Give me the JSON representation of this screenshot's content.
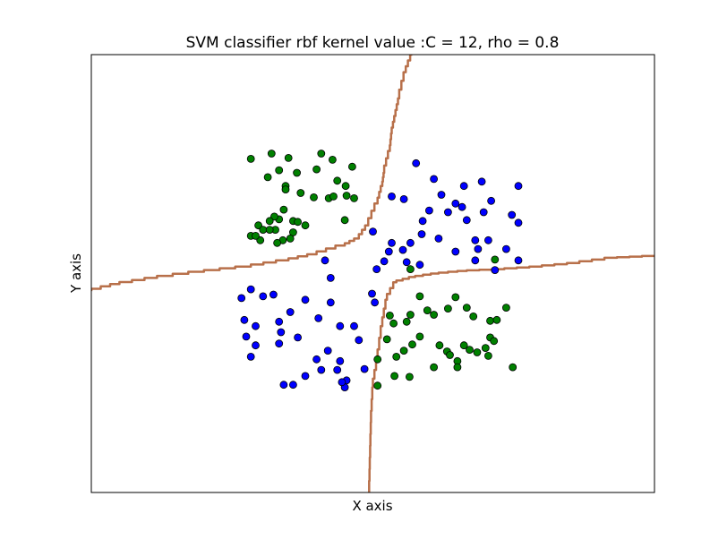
{
  "chart_data": {
    "type": "scatter",
    "title": "SVM classifier rbf kernel value :C = 12, rho = 0.8",
    "xlabel": "X axis",
    "ylabel": "Y axis",
    "xlim": [
      -3.0,
      3.0
    ],
    "ylim": [
      -2.5,
      2.5
    ],
    "ticks_visible": false,
    "grid": false,
    "legend": "none",
    "series": [
      {
        "color": "#0000ff",
        "points": [
          [
            0.46,
            1.26
          ],
          [
            0.65,
            1.08
          ],
          [
            0.97,
            1.0
          ],
          [
            1.16,
            1.05
          ],
          [
            1.55,
            1.0
          ],
          [
            0.73,
            0.9
          ],
          [
            0.88,
            0.8
          ],
          [
            0.95,
            0.76
          ],
          [
            1.26,
            0.83
          ],
          [
            0.53,
            0.6
          ],
          [
            0.6,
            0.72
          ],
          [
            0.8,
            0.7
          ],
          [
            1.0,
            0.61
          ],
          [
            1.18,
            0.7
          ],
          [
            1.48,
            0.67
          ],
          [
            1.55,
            0.58
          ],
          [
            0.2,
            0.88
          ],
          [
            0.33,
            0.85
          ],
          [
            0.0,
            0.48
          ],
          [
            0.2,
            0.35
          ],
          [
            0.4,
            0.35
          ],
          [
            0.52,
            0.45
          ],
          [
            0.7,
            0.4
          ],
          [
            0.88,
            0.25
          ],
          [
            1.09,
            0.38
          ],
          [
            1.12,
            0.28
          ],
          [
            1.23,
            0.38
          ],
          [
            1.42,
            0.28
          ],
          [
            1.55,
            0.15
          ],
          [
            1.09,
            0.15
          ],
          [
            1.3,
            0.04
          ],
          [
            0.32,
            0.27
          ],
          [
            0.36,
            0.13
          ],
          [
            0.5,
            0.1
          ],
          [
            0.12,
            0.14
          ],
          [
            0.17,
            0.25
          ],
          [
            0.04,
            0.05
          ],
          [
            -0.01,
            -0.23
          ],
          [
            -0.51,
            0.15
          ],
          [
            -0.45,
            -0.05
          ],
          [
            -1.3,
            -0.18
          ],
          [
            -1.4,
            -0.28
          ],
          [
            -1.17,
            -0.26
          ],
          [
            -1.06,
            -0.24
          ],
          [
            -0.88,
            -0.44
          ],
          [
            -0.72,
            -0.3
          ],
          [
            -0.45,
            -0.33
          ],
          [
            -1.37,
            -0.53
          ],
          [
            -1.25,
            -0.6
          ],
          [
            -1.35,
            -0.72
          ],
          [
            -1.0,
            -0.55
          ],
          [
            -0.98,
            -0.67
          ],
          [
            -0.8,
            -0.73
          ],
          [
            -0.58,
            -0.51
          ],
          [
            -0.35,
            -0.6
          ],
          [
            -0.2,
            -0.6
          ],
          [
            -1.25,
            -0.82
          ],
          [
            -1.0,
            -0.8
          ],
          [
            -0.6,
            -0.98
          ],
          [
            -0.48,
            -0.88
          ],
          [
            -0.35,
            -1.0
          ],
          [
            -0.72,
            -1.17
          ],
          [
            -0.55,
            -1.1
          ],
          [
            -1.3,
            -0.95
          ],
          [
            -0.95,
            -1.27
          ],
          [
            -0.85,
            -1.27
          ],
          [
            -0.38,
            -1.1
          ],
          [
            -0.28,
            -1.22
          ],
          [
            -0.09,
            -1.09
          ],
          [
            -0.3,
            -1.3
          ],
          [
            -0.33,
            -1.24
          ],
          [
            -0.15,
            -0.76
          ],
          [
            0.02,
            -0.33
          ]
        ]
      },
      {
        "color": "#008000",
        "points": [
          [
            -1.3,
            1.31
          ],
          [
            -1.08,
            1.37
          ],
          [
            -0.9,
            1.32
          ],
          [
            -0.55,
            1.37
          ],
          [
            -0.43,
            1.3
          ],
          [
            -0.22,
            1.22
          ],
          [
            -0.29,
            1.0
          ],
          [
            -0.38,
            1.06
          ],
          [
            -1.0,
            1.18
          ],
          [
            -0.81,
            1.15
          ],
          [
            -0.6,
            1.19
          ],
          [
            -1.12,
            1.1
          ],
          [
            -0.93,
            1.0
          ],
          [
            -0.93,
            0.96
          ],
          [
            -0.77,
            0.92
          ],
          [
            -0.63,
            0.87
          ],
          [
            -0.47,
            0.86
          ],
          [
            -0.2,
            0.86
          ],
          [
            -0.42,
            0.88
          ],
          [
            -0.28,
            0.89
          ],
          [
            -0.95,
            0.73
          ],
          [
            -1.0,
            0.62
          ],
          [
            -0.85,
            0.6
          ],
          [
            -0.8,
            0.59
          ],
          [
            -1.05,
            0.65
          ],
          [
            -1.1,
            0.6
          ],
          [
            -1.22,
            0.55
          ],
          [
            -1.3,
            0.43
          ],
          [
            -1.17,
            0.5
          ],
          [
            -1.04,
            0.5
          ],
          [
            -0.72,
            0.55
          ],
          [
            -0.85,
            0.47
          ],
          [
            -0.88,
            0.4
          ],
          [
            -0.96,
            0.38
          ],
          [
            -1.02,
            0.35
          ],
          [
            -1.2,
            0.38
          ],
          [
            -1.25,
            0.43
          ],
          [
            -0.3,
            0.61
          ],
          [
            -1.1,
            0.5
          ],
          [
            0.5,
            -0.26
          ],
          [
            0.88,
            -0.27
          ],
          [
            0.8,
            -0.4
          ],
          [
            0.58,
            -0.42
          ],
          [
            0.65,
            -0.47
          ],
          [
            0.4,
            -0.47
          ],
          [
            0.18,
            -0.48
          ],
          [
            0.22,
            -0.57
          ],
          [
            0.36,
            -0.55
          ],
          [
            1.0,
            -0.39
          ],
          [
            1.07,
            -0.49
          ],
          [
            1.25,
            -0.54
          ],
          [
            1.42,
            -0.39
          ],
          [
            1.32,
            -0.53
          ],
          [
            1.25,
            -0.73
          ],
          [
            0.15,
            -0.75
          ],
          [
            0.5,
            -0.72
          ],
          [
            0.42,
            -0.81
          ],
          [
            0.05,
            -0.98
          ],
          [
            0.23,
            -1.17
          ],
          [
            0.39,
            -1.18
          ],
          [
            0.71,
            -0.82
          ],
          [
            0.79,
            -0.89
          ],
          [
            0.82,
            -0.93
          ],
          [
            0.97,
            -0.82
          ],
          [
            1.03,
            -0.87
          ],
          [
            1.11,
            -0.9
          ],
          [
            1.2,
            -0.85
          ],
          [
            1.29,
            -0.77
          ],
          [
            1.23,
            -0.94
          ],
          [
            0.9,
            -1.0
          ],
          [
            0.65,
            -1.07
          ],
          [
            0.33,
            -0.88
          ],
          [
            0.25,
            -0.95
          ],
          [
            1.49,
            -1.07
          ],
          [
            0.9,
            -1.07
          ],
          [
            1.3,
            0.16
          ],
          [
            0.05,
            -1.28
          ],
          [
            0.4,
            0.05
          ]
        ]
      }
    ],
    "decision_boundary": {
      "color": "#b8704a",
      "lines": [
        [
          [
            0.42,
            2.5
          ],
          [
            0.35,
            2.3
          ],
          [
            0.28,
            2.0
          ],
          [
            0.24,
            1.8
          ],
          [
            0.2,
            1.6
          ],
          [
            0.18,
            1.4
          ],
          [
            0.12,
            1.15
          ],
          [
            0.1,
            1.0
          ],
          [
            0.05,
            0.8
          ],
          [
            -0.05,
            0.55
          ],
          [
            -0.15,
            0.4
          ],
          [
            -0.3,
            0.32
          ],
          [
            -0.6,
            0.22
          ],
          [
            -0.9,
            0.15
          ],
          [
            -1.3,
            0.08
          ],
          [
            -1.8,
            0.02
          ],
          [
            -2.3,
            -0.05
          ],
          [
            -2.7,
            -0.12
          ],
          [
            -3.0,
            -0.2
          ]
        ],
        [
          [
            3.0,
            0.2
          ],
          [
            2.6,
            0.18
          ],
          [
            2.2,
            0.12
          ],
          [
            1.8,
            0.08
          ],
          [
            1.4,
            0.05
          ],
          [
            1.0,
            0.03
          ],
          [
            0.7,
            0.0
          ],
          [
            0.45,
            -0.04
          ],
          [
            0.25,
            -0.1
          ],
          [
            0.15,
            -0.3
          ],
          [
            0.1,
            -0.6
          ],
          [
            0.05,
            -1.0
          ],
          [
            0.0,
            -1.3
          ],
          [
            -0.02,
            -1.7
          ],
          [
            -0.03,
            -2.1
          ],
          [
            -0.04,
            -2.5
          ]
        ]
      ]
    }
  }
}
